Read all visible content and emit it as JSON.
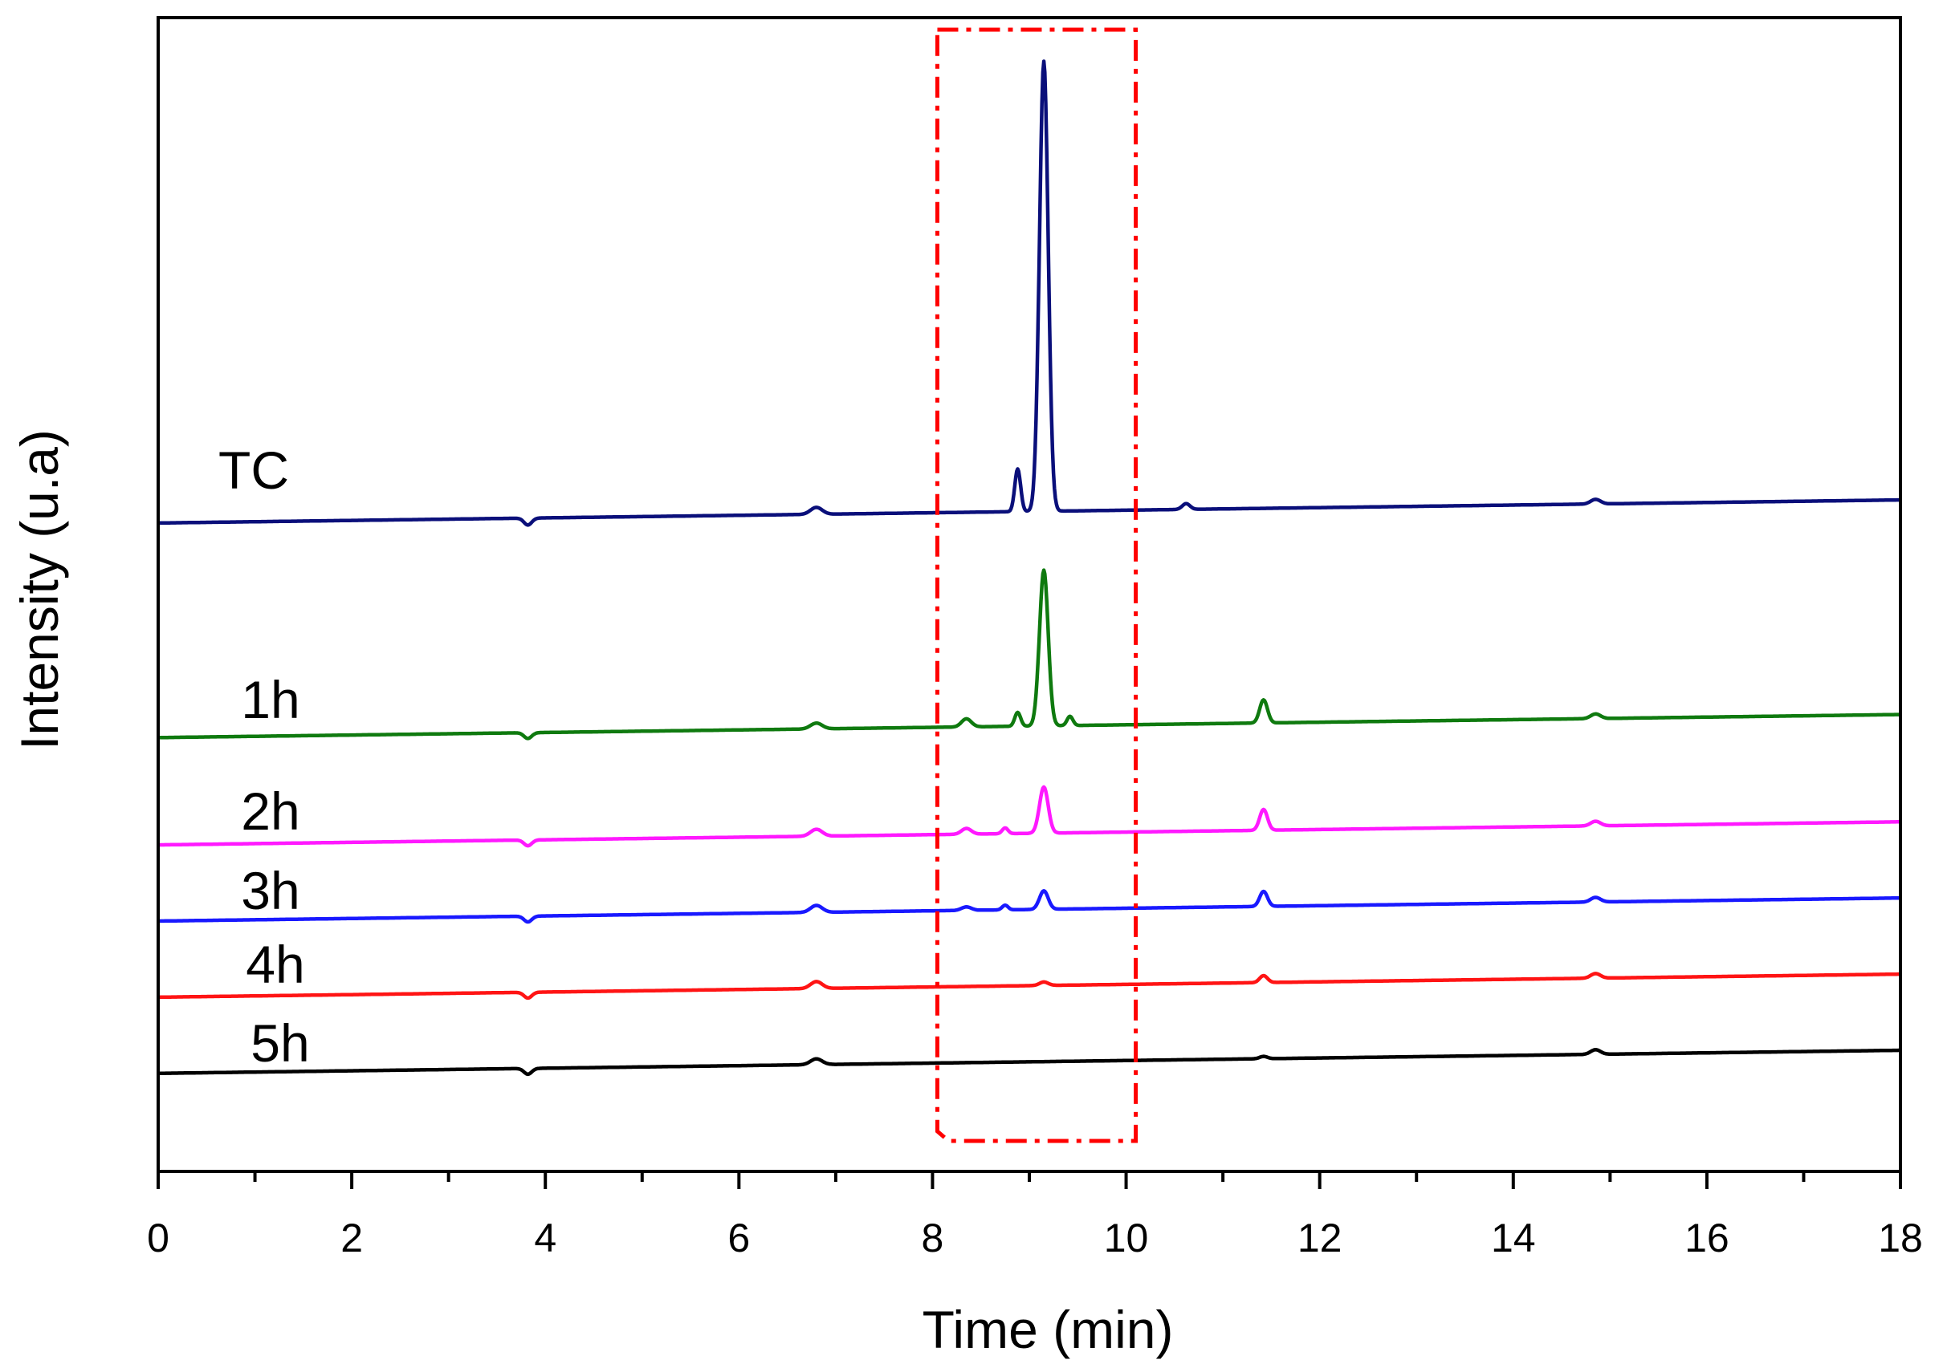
{
  "chart_data": {
    "type": "line",
    "title": "",
    "xlabel": "Time (min)",
    "ylabel": "Intensity (u.a)",
    "xlim": [
      0,
      18
    ],
    "ylim": [
      0,
      1
    ],
    "xticks": [
      0,
      2,
      4,
      6,
      8,
      10,
      12,
      14,
      16,
      18
    ],
    "xtick_labels": [
      "0",
      "2",
      "4",
      "6",
      "8",
      "10",
      "12",
      "14",
      "16",
      "18"
    ],
    "yticks_shown": false,
    "highlight_region": {
      "x_start": 8.05,
      "x_end": 10.1,
      "style": "dash-dot",
      "color": "#ff0000"
    },
    "series": [
      {
        "name": "TC",
        "color": "#0a0f7a",
        "baseline": 0.562,
        "drift": 0.02,
        "peaks": [
          {
            "x": 3.82,
            "h": -0.006,
            "w": 0.04
          },
          {
            "x": 6.8,
            "h": 0.006,
            "w": 0.06
          },
          {
            "x": 8.88,
            "h": 0.037,
            "w": 0.03
          },
          {
            "x": 9.15,
            "h": 0.39,
            "w": 0.045
          },
          {
            "x": 10.62,
            "h": 0.005,
            "w": 0.04
          },
          {
            "x": 14.85,
            "h": 0.004,
            "w": 0.05
          }
        ]
      },
      {
        "name": "1h",
        "color": "#0f7a0f",
        "baseline": 0.376,
        "drift": 0.02,
        "peaks": [
          {
            "x": 3.82,
            "h": -0.005,
            "w": 0.04
          },
          {
            "x": 6.8,
            "h": 0.005,
            "w": 0.06
          },
          {
            "x": 8.35,
            "h": 0.007,
            "w": 0.05
          },
          {
            "x": 8.88,
            "h": 0.012,
            "w": 0.03
          },
          {
            "x": 9.15,
            "h": 0.135,
            "w": 0.045
          },
          {
            "x": 9.42,
            "h": 0.008,
            "w": 0.03
          },
          {
            "x": 11.42,
            "h": 0.02,
            "w": 0.04
          },
          {
            "x": 14.85,
            "h": 0.004,
            "w": 0.05
          }
        ]
      },
      {
        "name": "2h",
        "color": "#ff19ff",
        "baseline": 0.283,
        "drift": 0.02,
        "peaks": [
          {
            "x": 3.82,
            "h": -0.005,
            "w": 0.04
          },
          {
            "x": 6.8,
            "h": 0.006,
            "w": 0.06
          },
          {
            "x": 8.35,
            "h": 0.005,
            "w": 0.05
          },
          {
            "x": 8.75,
            "h": 0.005,
            "w": 0.03
          },
          {
            "x": 9.15,
            "h": 0.04,
            "w": 0.045
          },
          {
            "x": 11.42,
            "h": 0.018,
            "w": 0.04
          },
          {
            "x": 14.85,
            "h": 0.004,
            "w": 0.05
          }
        ]
      },
      {
        "name": "3h",
        "color": "#1919ff",
        "baseline": 0.217,
        "drift": 0.02,
        "peaks": [
          {
            "x": 3.82,
            "h": -0.005,
            "w": 0.04
          },
          {
            "x": 6.8,
            "h": 0.006,
            "w": 0.06
          },
          {
            "x": 8.35,
            "h": 0.003,
            "w": 0.05
          },
          {
            "x": 8.75,
            "h": 0.004,
            "w": 0.03
          },
          {
            "x": 9.15,
            "h": 0.016,
            "w": 0.045
          },
          {
            "x": 11.42,
            "h": 0.013,
            "w": 0.04
          },
          {
            "x": 14.85,
            "h": 0.004,
            "w": 0.05
          }
        ]
      },
      {
        "name": "4h",
        "color": "#ff1414",
        "baseline": 0.151,
        "drift": 0.02,
        "peaks": [
          {
            "x": 3.82,
            "h": -0.005,
            "w": 0.04
          },
          {
            "x": 6.8,
            "h": 0.006,
            "w": 0.06
          },
          {
            "x": 9.15,
            "h": 0.003,
            "w": 0.045
          },
          {
            "x": 11.42,
            "h": 0.006,
            "w": 0.04
          },
          {
            "x": 14.85,
            "h": 0.004,
            "w": 0.05
          }
        ]
      },
      {
        "name": "5h",
        "color": "#000000",
        "baseline": 0.085,
        "drift": 0.02,
        "peaks": [
          {
            "x": 3.82,
            "h": -0.005,
            "w": 0.04
          },
          {
            "x": 6.8,
            "h": 0.005,
            "w": 0.06
          },
          {
            "x": 11.42,
            "h": 0.002,
            "w": 0.04
          },
          {
            "x": 14.85,
            "h": 0.004,
            "w": 0.05
          }
        ]
      }
    ]
  }
}
